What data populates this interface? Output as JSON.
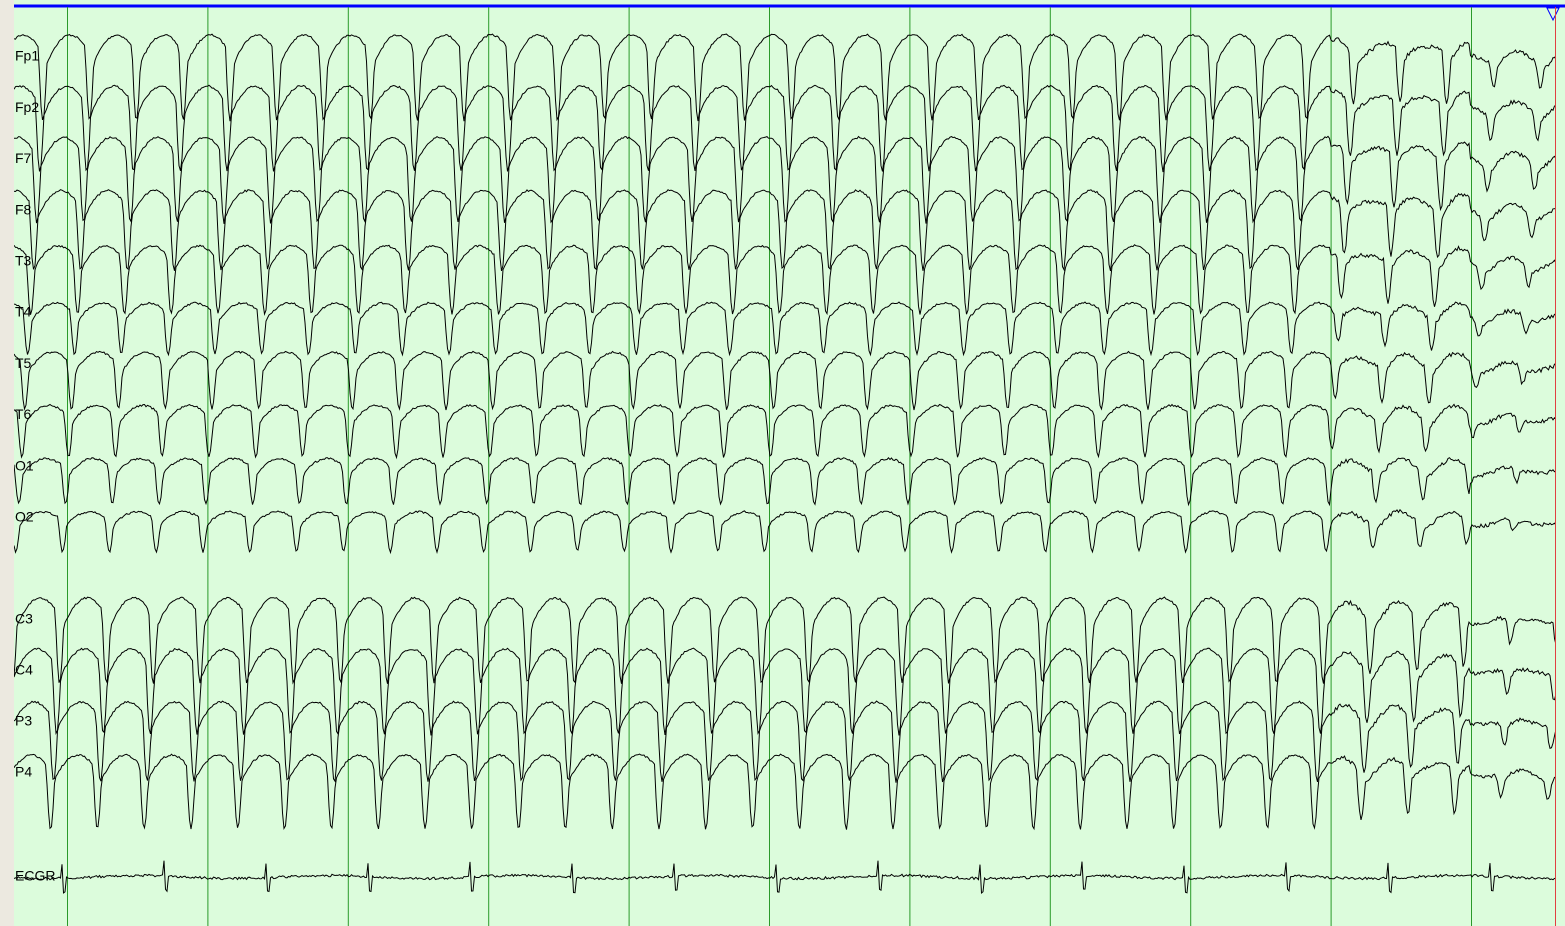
{
  "channels": [
    "Fp1",
    "Fp2",
    "F7",
    "F8",
    "T3",
    "T4",
    "T5",
    "T6",
    "O1",
    "O2",
    "C3",
    "C4",
    "P3",
    "P4",
    "ECGR"
  ]
}
